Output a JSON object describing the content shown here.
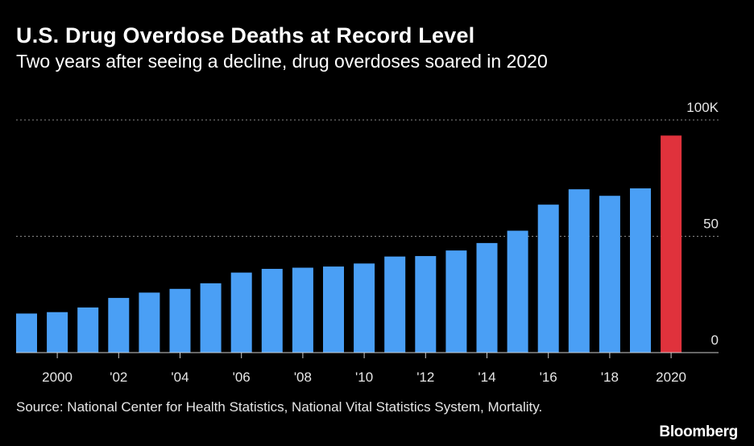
{
  "header": {
    "title": "U.S. Drug Overdose Deaths at Record Level",
    "subtitle": "Two years after seeing a decline, drug overdoses soared in 2020"
  },
  "footer": {
    "source": "Source: National Center for Health Statistics, National Vital Statistics System, Mortality.",
    "brand": "Bloomberg"
  },
  "chart_data": {
    "type": "bar",
    "categories": [
      "1999",
      "2000",
      "2001",
      "2002",
      "2003",
      "2004",
      "2005",
      "2006",
      "2007",
      "2008",
      "2009",
      "2010",
      "2011",
      "2012",
      "2013",
      "2014",
      "2015",
      "2016",
      "2017",
      "2018",
      "2019",
      "2020"
    ],
    "values": [
      16.8,
      17.4,
      19.4,
      23.5,
      25.8,
      27.4,
      29.8,
      34.4,
      36.0,
      36.5,
      37.0,
      38.3,
      41.3,
      41.5,
      43.9,
      47.1,
      52.4,
      63.6,
      70.2,
      67.4,
      70.6,
      93.3
    ],
    "x_tick_labels": [
      {
        "category": "2000",
        "label": "2000"
      },
      {
        "category": "2002",
        "label": "'02"
      },
      {
        "category": "2004",
        "label": "'04"
      },
      {
        "category": "2006",
        "label": "'06"
      },
      {
        "category": "2008",
        "label": "'08"
      },
      {
        "category": "2010",
        "label": "'10"
      },
      {
        "category": "2012",
        "label": "'12"
      },
      {
        "category": "2014",
        "label": "'14"
      },
      {
        "category": "2016",
        "label": "'16"
      },
      {
        "category": "2018",
        "label": "'18"
      },
      {
        "category": "2020",
        "label": "2020"
      }
    ],
    "y_ticks": [
      {
        "value": 0,
        "label": "0"
      },
      {
        "value": 50,
        "label": "50"
      },
      {
        "value": 100,
        "label": "100K"
      }
    ],
    "ylim": [
      0,
      100
    ],
    "grid": "dotted horizontal",
    "y_axis_position": "right",
    "highlight_category": "2020",
    "colors": {
      "bar": "#4a9ff5",
      "highlight": "#e0323c",
      "grid": "#8a8a8a",
      "axis": "#cccccc"
    }
  }
}
